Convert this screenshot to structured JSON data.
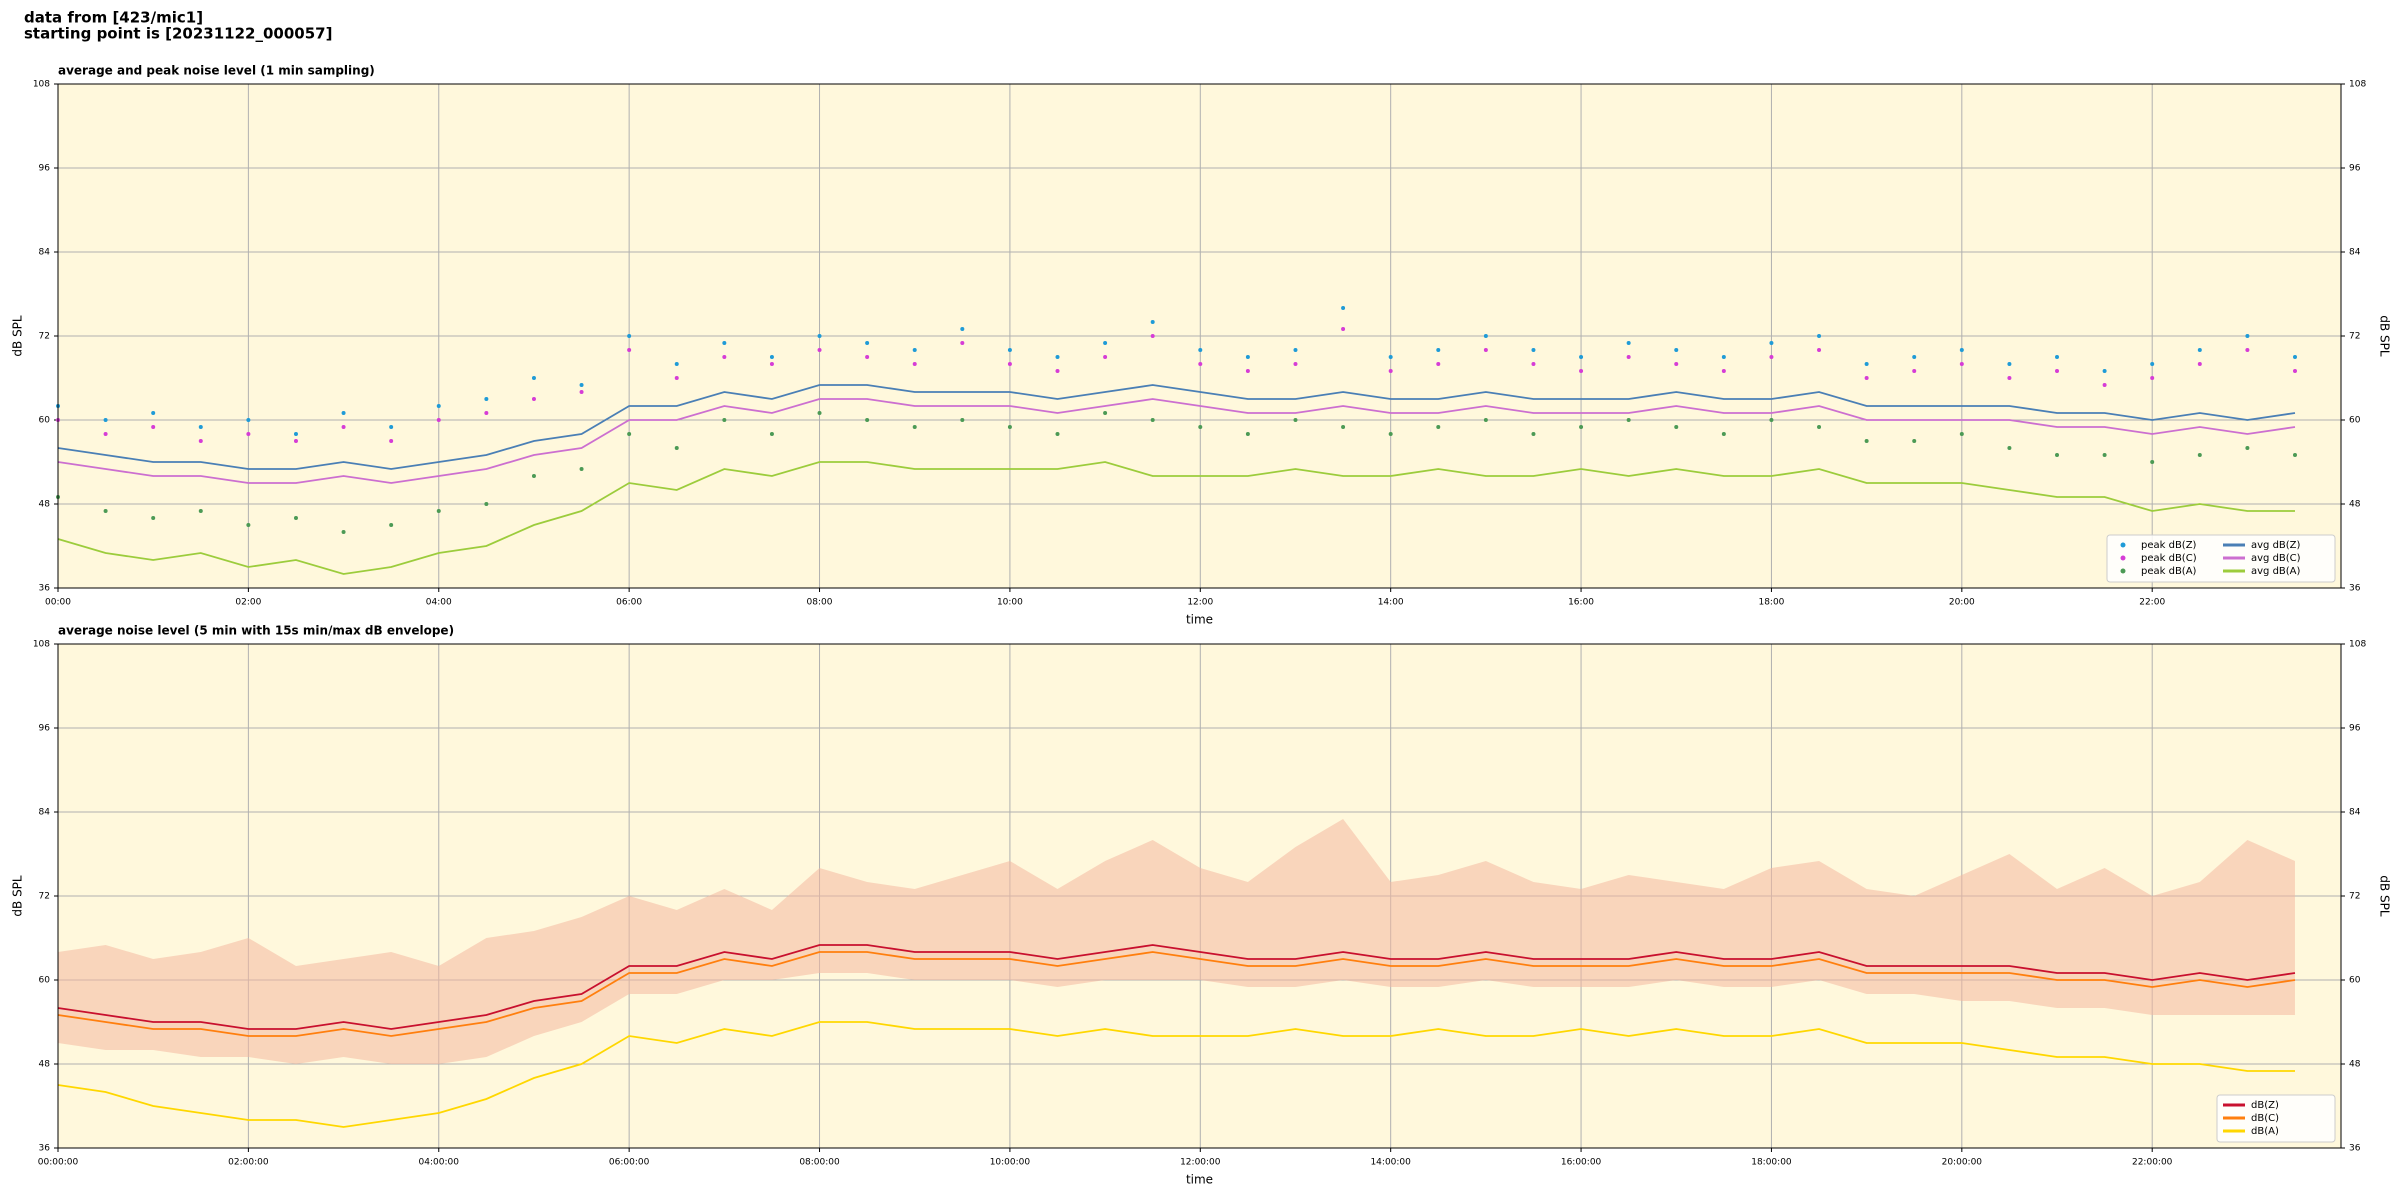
{
  "header": {
    "line1": "data from [423/mic1]",
    "line2": "starting point is [20231122_000057]"
  },
  "chart_data": [
    {
      "type": "line",
      "title": "average and peak noise level (1 min sampling)",
      "xlabel": "time",
      "ylabel": "dB SPL",
      "background": "#fff8dc",
      "grid": true,
      "legend": "lower right",
      "legend_columns": 2,
      "xlim": [
        "00:00",
        "23:59"
      ],
      "ylim": [
        36,
        108
      ],
      "yticks": [
        36,
        48,
        60,
        72,
        84,
        96,
        108
      ],
      "xticks": [
        "00:00",
        "02:00",
        "04:00",
        "06:00",
        "08:00",
        "10:00",
        "12:00",
        "14:00",
        "16:00",
        "18:00",
        "20:00",
        "22:00"
      ],
      "x": [
        "00:00",
        "00:30",
        "01:00",
        "01:30",
        "02:00",
        "02:30",
        "03:00",
        "03:30",
        "04:00",
        "04:30",
        "05:00",
        "05:30",
        "06:00",
        "06:30",
        "07:00",
        "07:30",
        "08:00",
        "08:30",
        "09:00",
        "09:30",
        "10:00",
        "10:30",
        "11:00",
        "11:30",
        "12:00",
        "12:30",
        "13:00",
        "13:30",
        "14:00",
        "14:30",
        "15:00",
        "15:30",
        "16:00",
        "16:30",
        "17:00",
        "17:30",
        "18:00",
        "18:30",
        "19:00",
        "19:30",
        "20:00",
        "20:30",
        "21:00",
        "21:30",
        "22:00",
        "22:30",
        "23:00",
        "23:30"
      ],
      "series": [
        {
          "name": "peak dB(Z)",
          "type": "scatter",
          "color": "#1f9bd7",
          "values": [
            62,
            60,
            61,
            59,
            60,
            58,
            61,
            59,
            62,
            63,
            66,
            65,
            72,
            68,
            71,
            69,
            72,
            71,
            70,
            73,
            70,
            69,
            71,
            74,
            70,
            69,
            70,
            76,
            69,
            70,
            72,
            70,
            69,
            71,
            70,
            69,
            71,
            72,
            68,
            69,
            70,
            68,
            69,
            67,
            68,
            70,
            72,
            69
          ]
        },
        {
          "name": "peak dB(C)",
          "type": "scatter",
          "color": "#d63cd6",
          "values": [
            60,
            58,
            59,
            57,
            58,
            57,
            59,
            57,
            60,
            61,
            63,
            64,
            70,
            66,
            69,
            68,
            70,
            69,
            68,
            71,
            68,
            67,
            69,
            72,
            68,
            67,
            68,
            73,
            67,
            68,
            70,
            68,
            67,
            69,
            68,
            67,
            69,
            70,
            66,
            67,
            68,
            66,
            67,
            65,
            66,
            68,
            70,
            67
          ]
        },
        {
          "name": "peak dB(A)",
          "type": "scatter",
          "color": "#4c9a55",
          "values": [
            49,
            47,
            46,
            47,
            45,
            46,
            44,
            45,
            47,
            48,
            52,
            53,
            58,
            56,
            60,
            58,
            61,
            60,
            59,
            60,
            59,
            58,
            61,
            60,
            59,
            58,
            60,
            59,
            58,
            59,
            60,
            58,
            59,
            60,
            59,
            58,
            60,
            59,
            57,
            57,
            58,
            56,
            55,
            55,
            54,
            55,
            56,
            55
          ]
        },
        {
          "name": "avg dB(Z)",
          "type": "line",
          "color": "#4a7fb5",
          "values": [
            56,
            55,
            54,
            54,
            53,
            53,
            54,
            53,
            54,
            55,
            57,
            58,
            62,
            62,
            64,
            63,
            65,
            65,
            64,
            64,
            64,
            63,
            64,
            65,
            64,
            63,
            63,
            64,
            63,
            63,
            64,
            63,
            63,
            63,
            64,
            63,
            63,
            64,
            62,
            62,
            62,
            62,
            61,
            61,
            60,
            61,
            60,
            61
          ]
        },
        {
          "name": "avg dB(C)",
          "type": "line",
          "color": "#cc6fd0",
          "values": [
            54,
            53,
            52,
            52,
            51,
            51,
            52,
            51,
            52,
            53,
            55,
            56,
            60,
            60,
            62,
            61,
            63,
            63,
            62,
            62,
            62,
            61,
            62,
            63,
            62,
            61,
            61,
            62,
            61,
            61,
            62,
            61,
            61,
            61,
            62,
            61,
            61,
            62,
            60,
            60,
            60,
            60,
            59,
            59,
            58,
            59,
            58,
            59
          ]
        },
        {
          "name": "avg dB(A)",
          "type": "line",
          "color": "#9ccc3c",
          "values": [
            43,
            41,
            40,
            41,
            39,
            40,
            38,
            39,
            41,
            42,
            45,
            47,
            51,
            50,
            53,
            52,
            54,
            54,
            53,
            53,
            53,
            53,
            54,
            52,
            52,
            52,
            53,
            52,
            52,
            53,
            52,
            52,
            53,
            52,
            53,
            52,
            52,
            53,
            51,
            51,
            51,
            50,
            49,
            49,
            47,
            48,
            47,
            47
          ]
        }
      ]
    },
    {
      "type": "line",
      "title": "average noise level (5 min with 15s min/max dB envelope)",
      "xlabel": "time",
      "ylabel": "dB SPL",
      "background": "#fff8dc",
      "grid": true,
      "legend": "lower right",
      "legend_columns": 1,
      "xlim": [
        "00:00:00",
        "23:59:00"
      ],
      "ylim": [
        36,
        108
      ],
      "yticks": [
        36,
        48,
        60,
        72,
        84,
        96,
        108
      ],
      "xticks": [
        "00:00:00",
        "02:00:00",
        "04:00:00",
        "06:00:00",
        "08:00:00",
        "10:00:00",
        "12:00:00",
        "14:00:00",
        "16:00:00",
        "18:00:00",
        "20:00:00",
        "22:00:00"
      ],
      "x": [
        "00:00:00",
        "00:30:00",
        "01:00:00",
        "01:30:00",
        "02:00:00",
        "02:30:00",
        "03:00:00",
        "03:30:00",
        "04:00:00",
        "04:30:00",
        "05:00:00",
        "05:30:00",
        "06:00:00",
        "06:30:00",
        "07:00:00",
        "07:30:00",
        "08:00:00",
        "08:30:00",
        "09:00:00",
        "09:30:00",
        "10:00:00",
        "10:30:00",
        "11:00:00",
        "11:30:00",
        "12:00:00",
        "12:30:00",
        "13:00:00",
        "13:30:00",
        "14:00:00",
        "14:30:00",
        "15:00:00",
        "15:30:00",
        "16:00:00",
        "16:30:00",
        "17:00:00",
        "17:30:00",
        "18:00:00",
        "18:30:00",
        "19:00:00",
        "19:30:00",
        "20:00:00",
        "20:30:00",
        "21:00:00",
        "21:30:00",
        "22:00:00",
        "22:30:00",
        "23:00:00",
        "23:30:00"
      ],
      "envelope": {
        "color": "#f4b8a0",
        "min": [
          51,
          50,
          50,
          49,
          49,
          48,
          49,
          48,
          48,
          49,
          52,
          54,
          58,
          58,
          60,
          60,
          61,
          61,
          60,
          60,
          60,
          59,
          60,
          60,
          60,
          59,
          59,
          60,
          59,
          59,
          60,
          59,
          59,
          59,
          60,
          59,
          59,
          60,
          58,
          58,
          57,
          57,
          56,
          56,
          55,
          55,
          55,
          55
        ],
        "max": [
          64,
          65,
          63,
          64,
          66,
          62,
          63,
          64,
          62,
          66,
          67,
          69,
          72,
          70,
          73,
          70,
          76,
          74,
          73,
          75,
          77,
          73,
          77,
          80,
          76,
          74,
          79,
          83,
          74,
          75,
          77,
          74,
          73,
          75,
          74,
          73,
          76,
          77,
          73,
          72,
          75,
          78,
          73,
          76,
          72,
          74,
          80,
          77
        ]
      },
      "series": [
        {
          "name": "dB(Z)",
          "type": "line",
          "color": "#c8102e",
          "values": [
            56,
            55,
            54,
            54,
            53,
            53,
            54,
            53,
            54,
            55,
            57,
            58,
            62,
            62,
            64,
            63,
            65,
            65,
            64,
            64,
            64,
            63,
            64,
            65,
            64,
            63,
            63,
            64,
            63,
            63,
            64,
            63,
            63,
            63,
            64,
            63,
            63,
            64,
            62,
            62,
            62,
            62,
            61,
            61,
            60,
            61,
            60,
            61
          ]
        },
        {
          "name": "dB(C)",
          "type": "line",
          "color": "#ff7f0e",
          "values": [
            55,
            54,
            53,
            53,
            52,
            52,
            53,
            52,
            53,
            54,
            56,
            57,
            61,
            61,
            63,
            62,
            64,
            64,
            63,
            63,
            63,
            62,
            63,
            64,
            63,
            62,
            62,
            63,
            62,
            62,
            63,
            62,
            62,
            62,
            63,
            62,
            62,
            63,
            61,
            61,
            61,
            61,
            60,
            60,
            59,
            60,
            59,
            60
          ]
        },
        {
          "name": "dB(A)",
          "type": "line",
          "color": "#ffd700",
          "values": [
            45,
            44,
            42,
            41,
            40,
            40,
            39,
            40,
            41,
            43,
            46,
            48,
            52,
            51,
            53,
            52,
            54,
            54,
            53,
            53,
            53,
            52,
            53,
            52,
            52,
            52,
            53,
            52,
            52,
            53,
            52,
            52,
            53,
            52,
            53,
            52,
            52,
            53,
            51,
            51,
            51,
            50,
            49,
            49,
            48,
            48,
            47,
            47
          ]
        }
      ]
    }
  ]
}
